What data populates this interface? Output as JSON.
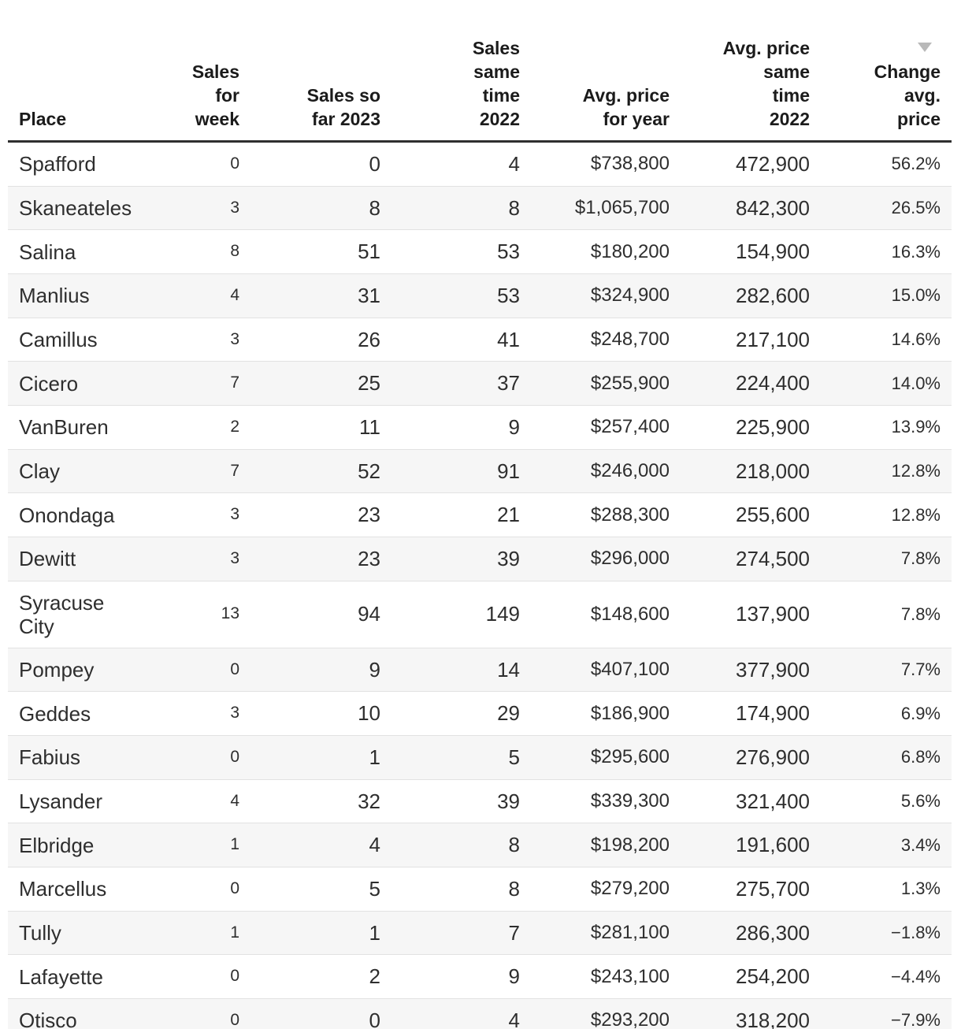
{
  "chart_data": {
    "type": "table",
    "sort": {
      "column": "Change avg. price",
      "direction": "descending"
    },
    "sort_icon_color": "#b9b9b9",
    "columns": [
      {
        "id": "place",
        "label": "Place",
        "lines": [
          "Place"
        ],
        "align": "left",
        "sorted": false
      },
      {
        "id": "sales_week",
        "label": "Sales for week",
        "lines": [
          "Sales",
          "for",
          "week"
        ],
        "align": "right",
        "sorted": false
      },
      {
        "id": "sales_2023",
        "label": "Sales so far 2023",
        "lines": [
          "Sales so",
          "far 2023"
        ],
        "align": "right",
        "sorted": false
      },
      {
        "id": "sales_2022",
        "label": "Sales same time 2022",
        "lines": [
          "Sales",
          "same",
          "time",
          "2022"
        ],
        "align": "right",
        "sorted": false
      },
      {
        "id": "avg_price_year",
        "label": "Avg. price for year",
        "lines": [
          "Avg. price",
          "for year"
        ],
        "align": "right",
        "sorted": false
      },
      {
        "id": "avg_price_2022",
        "label": "Avg. price same time 2022",
        "lines": [
          "Avg. price",
          "same",
          "time",
          "2022"
        ],
        "align": "right",
        "sorted": false
      },
      {
        "id": "change",
        "label": "Change avg. price",
        "lines": [
          "Change",
          "avg.",
          "price"
        ],
        "align": "right",
        "sorted": true
      }
    ],
    "rows": [
      [
        "Spafford",
        "0",
        "0",
        "4",
        "$738,800",
        "472,900",
        "56.2%"
      ],
      [
        "Skaneateles",
        "3",
        "8",
        "8",
        "$1,065,700",
        "842,300",
        "26.5%"
      ],
      [
        "Salina",
        "8",
        "51",
        "53",
        "$180,200",
        "154,900",
        "16.3%"
      ],
      [
        "Manlius",
        "4",
        "31",
        "53",
        "$324,900",
        "282,600",
        "15.0%"
      ],
      [
        "Camillus",
        "3",
        "26",
        "41",
        "$248,700",
        "217,100",
        "14.6%"
      ],
      [
        "Cicero",
        "7",
        "25",
        "37",
        "$255,900",
        "224,400",
        "14.0%"
      ],
      [
        "VanBuren",
        "2",
        "11",
        "9",
        "$257,400",
        "225,900",
        "13.9%"
      ],
      [
        "Clay",
        "7",
        "52",
        "91",
        "$246,000",
        "218,000",
        "12.8%"
      ],
      [
        "Onondaga",
        "3",
        "23",
        "21",
        "$288,300",
        "255,600",
        "12.8%"
      ],
      [
        "Dewitt",
        "3",
        "23",
        "39",
        "$296,000",
        "274,500",
        "7.8%"
      ],
      [
        "Syracuse City",
        "13",
        "94",
        "149",
        "$148,600",
        "137,900",
        "7.8%"
      ],
      [
        "Pompey",
        "0",
        "9",
        "14",
        "$407,100",
        "377,900",
        "7.7%"
      ],
      [
        "Geddes",
        "3",
        "10",
        "29",
        "$186,900",
        "174,900",
        "6.9%"
      ],
      [
        "Fabius",
        "0",
        "1",
        "5",
        "$295,600",
        "276,900",
        "6.8%"
      ],
      [
        "Lysander",
        "4",
        "32",
        "39",
        "$339,300",
        "321,400",
        "5.6%"
      ],
      [
        "Elbridge",
        "1",
        "4",
        "8",
        "$198,200",
        "191,600",
        "3.4%"
      ],
      [
        "Marcellus",
        "0",
        "5",
        "8",
        "$279,200",
        "275,700",
        "1.3%"
      ],
      [
        "Tully",
        "1",
        "1",
        "7",
        "$281,100",
        "286,300",
        "−1.8%"
      ],
      [
        "Lafayette",
        "0",
        "2",
        "9",
        "$243,100",
        "254,200",
        "−4.4%"
      ],
      [
        "Otisco",
        "0",
        "0",
        "4",
        "$293,200",
        "318,200",
        "−7.9%"
      ]
    ]
  }
}
